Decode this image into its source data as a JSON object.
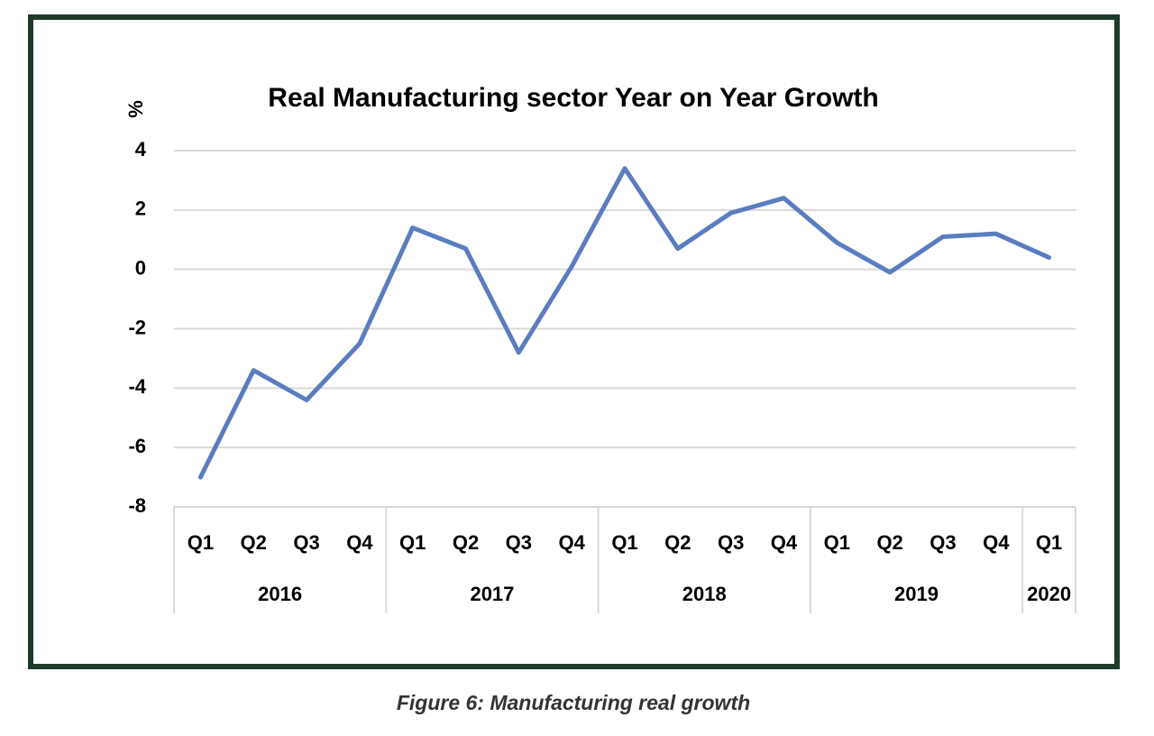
{
  "chart_data": {
    "type": "line",
    "title": "Real Manufacturing sector Year on Year Growth",
    "y_label": "%",
    "groups": [
      {
        "name": "2016",
        "categories": [
          "Q1",
          "Q2",
          "Q3",
          "Q4"
        ]
      },
      {
        "name": "2017",
        "categories": [
          "Q1",
          "Q2",
          "Q3",
          "Q4"
        ]
      },
      {
        "name": "2018",
        "categories": [
          "Q1",
          "Q2",
          "Q3",
          "Q4"
        ]
      },
      {
        "name": "2019",
        "categories": [
          "Q1",
          "Q2",
          "Q3",
          "Q4"
        ]
      },
      {
        "name": "2020",
        "categories": [
          "Q1"
        ]
      }
    ],
    "series": [
      {
        "color": "#5a7dbf",
        "values": [
          -7.0,
          -3.4,
          -4.4,
          -2.5,
          1.4,
          0.7,
          -2.8,
          0.1,
          3.4,
          0.7,
          1.9,
          2.4,
          0.9,
          -0.1,
          1.1,
          1.2,
          0.4
        ]
      }
    ],
    "ylim": [
      -8,
      4
    ],
    "yticks": [
      -8,
      -6,
      -4,
      -2,
      0,
      2,
      4
    ],
    "grid": true
  },
  "caption": "Figure 6: Manufacturing real growth"
}
